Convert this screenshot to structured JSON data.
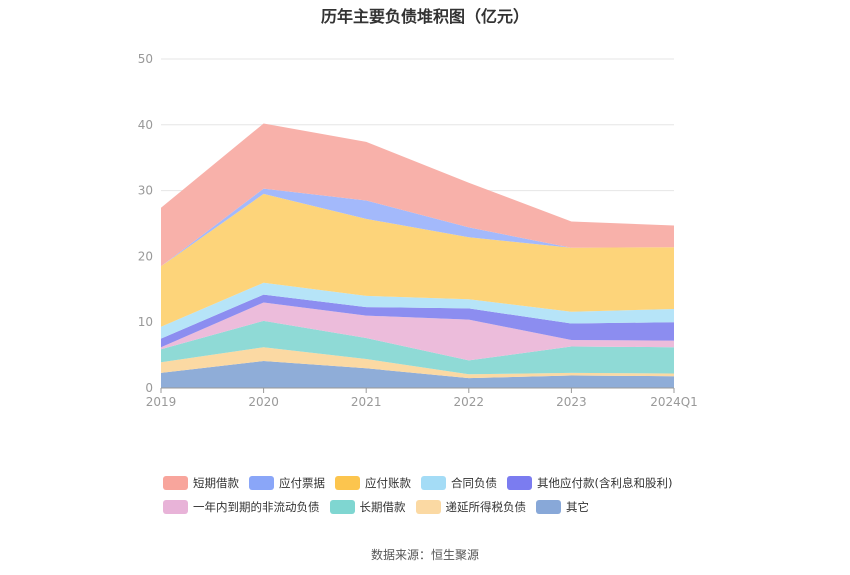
{
  "title": "历年主要负债堆积图（亿元）",
  "source": "数据来源：恒生聚源",
  "chart_data": {
    "type": "area",
    "stacked": true,
    "categories": [
      "2019",
      "2020",
      "2021",
      "2022",
      "2023",
      "2024Q1"
    ],
    "ylim": [
      0,
      50
    ],
    "yticks": [
      0,
      10,
      20,
      30,
      40,
      50
    ],
    "grid": true,
    "legend_position": "bottom",
    "series": [
      {
        "name": "其它",
        "color": "#8fadd8",
        "values": [
          2.3,
          4.1,
          3.0,
          1.5,
          1.9,
          1.8
        ]
      },
      {
        "name": "递延所得税负债",
        "color": "#fbd9a3",
        "values": [
          1.6,
          2.1,
          1.4,
          0.6,
          0.4,
          0.4
        ]
      },
      {
        "name": "长期借款",
        "color": "#8fdad6",
        "values": [
          2.0,
          4.0,
          3.2,
          2.1,
          4.0,
          4.0
        ]
      },
      {
        "name": "一年内到期的非流动负债",
        "color": "#ecbcdb",
        "values": [
          0.3,
          2.8,
          3.4,
          6.2,
          1.0,
          1.0
        ]
      },
      {
        "name": "其他应付款(含利息和股利)",
        "color": "#8c8df0",
        "values": [
          1.3,
          1.2,
          1.3,
          1.7,
          2.5,
          2.8
        ]
      },
      {
        "name": "合同负债",
        "color": "#b6e4f8",
        "values": [
          1.8,
          1.8,
          1.7,
          1.4,
          1.8,
          2.0
        ]
      },
      {
        "name": "应付账款",
        "color": "#fdd47a",
        "values": [
          9.2,
          13.5,
          11.7,
          9.4,
          9.7,
          9.4
        ]
      },
      {
        "name": "应付票据",
        "color": "#a3b9fb",
        "values": [
          0.0,
          0.8,
          2.8,
          1.5,
          0.0,
          0.0
        ]
      },
      {
        "name": "短期借款",
        "color": "#f8b1aa",
        "values": [
          8.9,
          9.9,
          8.9,
          6.8,
          4.0,
          3.3
        ]
      }
    ]
  },
  "legend": {
    "rows": [
      [
        {
          "name": "短期借款",
          "color": "#f8a59c"
        },
        {
          "name": "应付票据",
          "color": "#8aa6f8"
        },
        {
          "name": "应付账款",
          "color": "#fcc54e"
        },
        {
          "name": "合同负债",
          "color": "#a4dcf6"
        },
        {
          "name": "其他应付款(含利息和股利)",
          "color": "#7b7cf0"
        }
      ],
      [
        {
          "name": "一年内到期的非流动负债",
          "color": "#e8b3d8"
        },
        {
          "name": "长期借款",
          "color": "#7fd6d1"
        },
        {
          "name": "递延所得税负债",
          "color": "#fbd9a3"
        },
        {
          "name": "其它",
          "color": "#88a8d8"
        }
      ]
    ]
  }
}
